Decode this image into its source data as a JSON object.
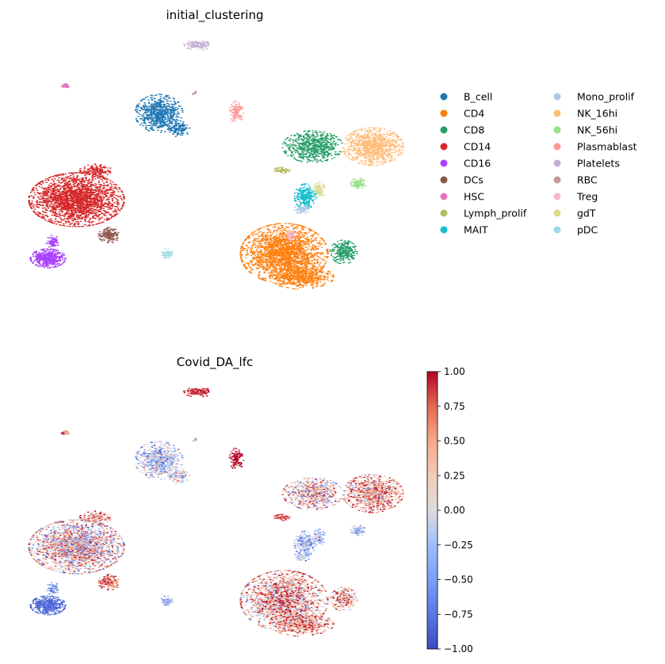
{
  "chart_data": [
    {
      "type": "scatter",
      "title": "initial_clustering",
      "legend_position": "right",
      "legend_columns": 2,
      "legend": [
        {
          "label": "B_cell",
          "color": "#1f77b4"
        },
        {
          "label": "CD4",
          "color": "#ff7f0e"
        },
        {
          "label": "CD8",
          "color": "#279e68"
        },
        {
          "label": "CD14",
          "color": "#d62728"
        },
        {
          "label": "CD16",
          "color": "#aa40fc"
        },
        {
          "label": "DCs",
          "color": "#8c564b"
        },
        {
          "label": "HSC",
          "color": "#e377c2"
        },
        {
          "label": "Lymph_prolif",
          "color": "#b5bd61"
        },
        {
          "label": "MAIT",
          "color": "#17becf"
        },
        {
          "label": "Mono_prolif",
          "color": "#aec7e8"
        },
        {
          "label": "NK_16hi",
          "color": "#ffbb78"
        },
        {
          "label": "NK_56hi",
          "color": "#98df8a"
        },
        {
          "label": "Plasmablast",
          "color": "#ff9896"
        },
        {
          "label": "Platelets",
          "color": "#c5b0d5"
        },
        {
          "label": "RBC",
          "color": "#c49c94"
        },
        {
          "label": "Treg",
          "color": "#f7b6d2"
        },
        {
          "label": "gdT",
          "color": "#dbdb8d"
        },
        {
          "label": "pDC",
          "color": "#9edae5"
        }
      ]
    },
    {
      "type": "scatter",
      "title": "Covid_DA_lfc",
      "colorbar": {
        "colormap": "coolwarm",
        "range": [
          -1.0,
          1.0
        ],
        "ticks": [
          "1.00",
          "0.75",
          "0.50",
          "0.25",
          "0.00",
          "−0.25",
          "−0.50",
          "−0.75",
          "−1.00"
        ],
        "low_color": "#3b4cc0",
        "mid_color": "#dddddd",
        "high_color": "#b40426"
      }
    }
  ]
}
